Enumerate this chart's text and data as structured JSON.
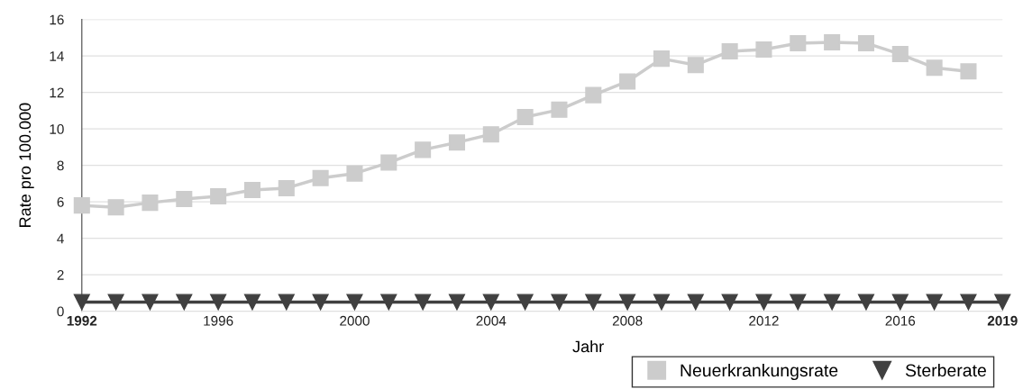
{
  "chart_data": {
    "type": "line",
    "xlabel": "Jahr",
    "ylabel": "Rate pro 100.000",
    "x": [
      1992,
      1993,
      1994,
      1995,
      1996,
      1997,
      1998,
      1999,
      2000,
      2001,
      2002,
      2003,
      2004,
      2005,
      2006,
      2007,
      2008,
      2009,
      2010,
      2011,
      2012,
      2013,
      2014,
      2015,
      2016,
      2017,
      2018,
      2019
    ],
    "series": [
      {
        "name": "Neuerkrankungsrate",
        "color": "#cccccc",
        "marker": "square",
        "values": [
          5.8,
          5.7,
          5.95,
          6.15,
          6.3,
          6.65,
          6.75,
          7.3,
          7.55,
          8.15,
          8.85,
          9.25,
          9.7,
          10.65,
          11.05,
          11.85,
          12.6,
          13.85,
          13.5,
          14.25,
          14.35,
          14.7,
          14.75,
          14.7,
          14.1,
          13.35,
          13.15,
          null
        ]
      },
      {
        "name": "Sterberate",
        "color": "#404040",
        "marker": "triangle",
        "values": [
          0.5,
          0.5,
          0.5,
          0.5,
          0.5,
          0.5,
          0.5,
          0.5,
          0.5,
          0.5,
          0.5,
          0.5,
          0.5,
          0.5,
          0.5,
          0.5,
          0.5,
          0.5,
          0.5,
          0.5,
          0.5,
          0.5,
          0.5,
          0.5,
          0.5,
          0.5,
          0.5,
          0.5
        ]
      }
    ],
    "xlim": [
      1992,
      2019
    ],
    "xticks": [
      {
        "value": 1992,
        "label": "1992"
      },
      1996,
      2000,
      2004,
      2008,
      2012,
      2016,
      {
        "value": 2019,
        "label": "2019"
      }
    ],
    "ylim": [
      0,
      16
    ],
    "yticks": [
      0,
      2,
      4,
      6,
      8,
      10,
      12,
      14,
      16
    ],
    "grid": "y",
    "legend": "bottom right",
    "line_style": "solid"
  }
}
